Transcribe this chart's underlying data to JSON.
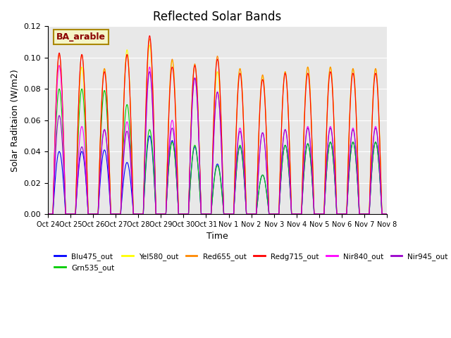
{
  "title": "Reflected Solar Bands",
  "xlabel": "Time",
  "ylabel": "Solar Raditaion (W/m2)",
  "annotation": "BA_arable",
  "ylim": [
    0,
    0.12
  ],
  "yticks": [
    0.0,
    0.02,
    0.04,
    0.06,
    0.08,
    0.1,
    0.12
  ],
  "xtick_labels": [
    "Oct 24",
    "Oct 25",
    "Oct 26",
    "Oct 27",
    "Oct 28",
    "Oct 29",
    "Oct 30",
    "Oct 31",
    "Nov 1",
    "Nov 2",
    "Nov 3",
    "Nov 4",
    "Nov 5",
    "Nov 6",
    "Nov 7",
    "Nov 8"
  ],
  "series": [
    {
      "name": "Blu475_out",
      "color": "#0000ff"
    },
    {
      "name": "Grn535_out",
      "color": "#00cc00"
    },
    {
      "name": "Yel580_out",
      "color": "#ffff00"
    },
    {
      "name": "Red655_out",
      "color": "#ff8800"
    },
    {
      "name": "Redg715_out",
      "color": "#ff0000"
    },
    {
      "name": "Nir840_out",
      "color": "#ff00ff"
    },
    {
      "name": "Nir945_out",
      "color": "#9900cc"
    }
  ],
  "peak_values": {
    "Blu475_out": [
      0.04,
      0.04,
      0.041,
      0.033,
      0.05,
      0.047,
      0.043,
      0.032,
      0.043,
      0.025,
      0.044,
      0.045,
      0.046,
      0.046,
      0.046
    ],
    "Grn535_out": [
      0.08,
      0.08,
      0.079,
      0.07,
      0.054,
      0.046,
      0.044,
      0.031,
      0.044,
      0.025,
      0.044,
      0.045,
      0.046,
      0.046,
      0.046
    ],
    "Yel580_out": [
      0.095,
      0.094,
      0.093,
      0.105,
      0.108,
      0.098,
      0.095,
      0.091,
      0.093,
      0.088,
      0.091,
      0.094,
      0.094,
      0.093,
      0.093
    ],
    "Red655_out": [
      0.102,
      0.102,
      0.093,
      0.102,
      0.112,
      0.099,
      0.096,
      0.101,
      0.093,
      0.089,
      0.091,
      0.094,
      0.094,
      0.093,
      0.093
    ],
    "Redg715_out": [
      0.103,
      0.102,
      0.091,
      0.102,
      0.114,
      0.094,
      0.095,
      0.099,
      0.09,
      0.086,
      0.09,
      0.09,
      0.091,
      0.09,
      0.09
    ],
    "Nir840_out": [
      0.095,
      0.056,
      0.054,
      0.059,
      0.094,
      0.06,
      0.087,
      0.078,
      0.055,
      0.052,
      0.054,
      0.056,
      0.056,
      0.055,
      0.056
    ],
    "Nir945_out": [
      0.063,
      0.043,
      0.054,
      0.053,
      0.091,
      0.055,
      0.087,
      0.078,
      0.053,
      0.052,
      0.054,
      0.055,
      0.055,
      0.054,
      0.055
    ]
  },
  "plot_bg_color": "#e8e8e8"
}
